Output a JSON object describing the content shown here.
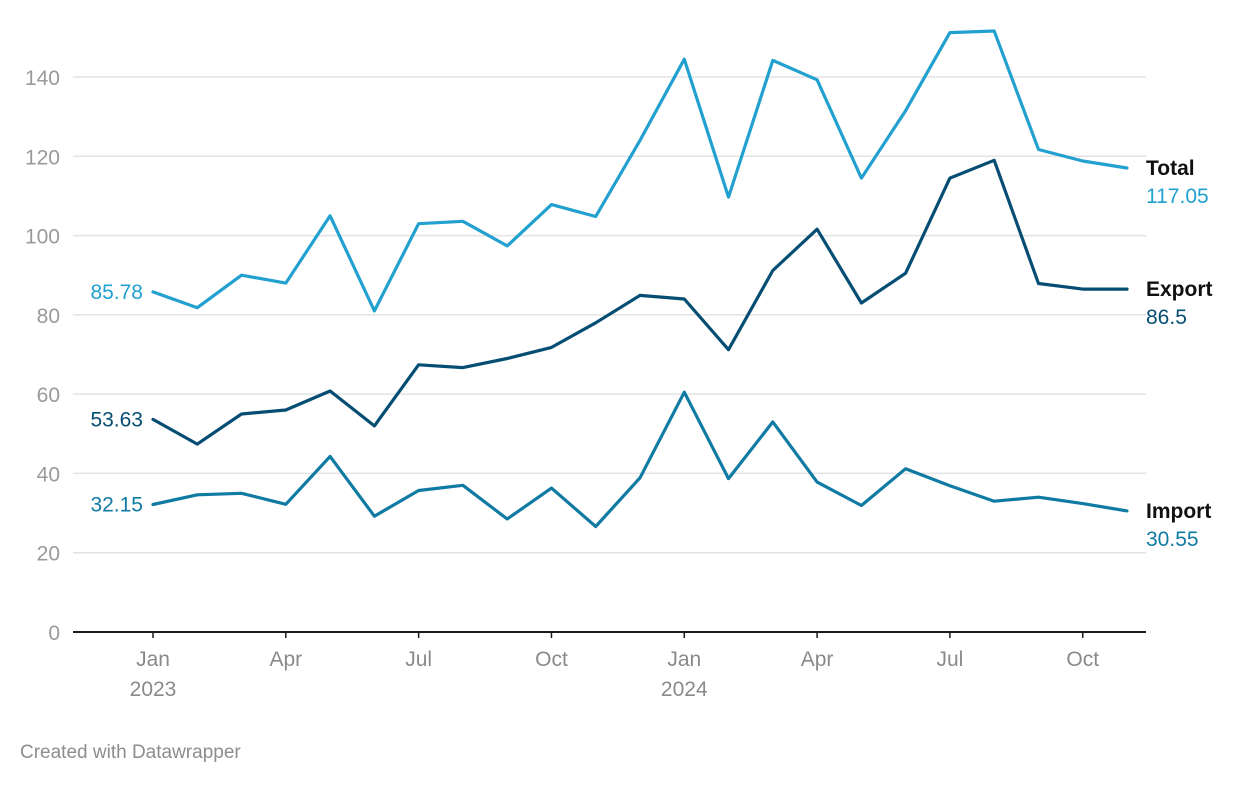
{
  "chart_data": {
    "type": "line",
    "x": [
      "2023-01",
      "2023-02",
      "2023-03",
      "2023-04",
      "2023-05",
      "2023-06",
      "2023-07",
      "2023-08",
      "2023-09",
      "2023-10",
      "2023-11",
      "2023-12",
      "2024-01",
      "2024-02",
      "2024-03",
      "2024-04",
      "2024-05",
      "2024-06",
      "2024-07",
      "2024-08",
      "2024-09",
      "2024-10",
      "2024-11"
    ],
    "x_ticks": [
      {
        "x": "2023-01",
        "label": "Jan",
        "year": "2023"
      },
      {
        "x": "2023-04",
        "label": "Apr"
      },
      {
        "x": "2023-07",
        "label": "Jul"
      },
      {
        "x": "2023-10",
        "label": "Oct"
      },
      {
        "x": "2024-01",
        "label": "Jan",
        "year": "2024"
      },
      {
        "x": "2024-04",
        "label": "Apr"
      },
      {
        "x": "2024-07",
        "label": "Jul"
      },
      {
        "x": "2024-10",
        "label": "Oct"
      }
    ],
    "y_ticks": [
      0,
      20,
      40,
      60,
      80,
      100,
      120,
      140
    ],
    "ylim": [
      0,
      150
    ],
    "grid": true,
    "series": [
      {
        "name": "Total",
        "color": "#22a0cf",
        "start_label": "85.78",
        "end_label": "117.05",
        "values": [
          85.78,
          81.8,
          90,
          88,
          105,
          81,
          103,
          103.6,
          97.4,
          107.8,
          104.8,
          124,
          144.5,
          109.7,
          144.2,
          139.3,
          114.5,
          131.5,
          151.2,
          151.6,
          121.7,
          118.8,
          117.05
        ]
      },
      {
        "name": "Export",
        "color": "#064d73",
        "start_label": "53.63",
        "end_label": "86.5",
        "values": [
          53.63,
          47.4,
          55,
          56,
          60.8,
          52,
          67.4,
          66.7,
          69,
          71.8,
          78,
          84.9,
          84,
          71.2,
          91.2,
          101.6,
          83,
          90.5,
          114.5,
          119,
          87.9,
          86.5,
          86.5
        ]
      },
      {
        "name": "Import",
        "color": "#0f7ba3",
        "start_label": "32.15",
        "end_label": "30.55",
        "values": [
          32.15,
          34.6,
          35,
          32.2,
          44.3,
          29.2,
          35.7,
          37,
          28.5,
          36.3,
          26.6,
          38.9,
          60.5,
          38.7,
          53,
          37.8,
          31.9,
          41.2,
          36.9,
          33,
          34,
          32.4,
          30.55
        ]
      }
    ]
  },
  "footer": {
    "credit": "Created with Datawrapper"
  }
}
